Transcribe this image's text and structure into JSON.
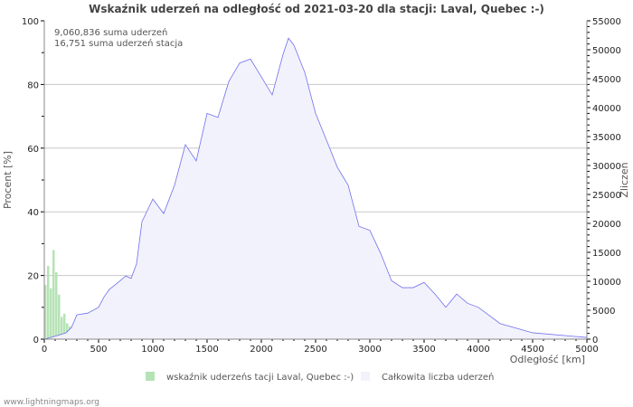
{
  "chart_data": {
    "type": "bar+area",
    "title": "Wskaźnik uderzeń na odległość od 2021-03-20 dla stacji: Laval, Quebec :-)",
    "annotations": [
      "9,060,836 suma uderzeń",
      "16,751 suma uderzeń stacja"
    ],
    "xlabel": "Odległość   [km]",
    "ylabel_left": "Procent   [%]",
    "ylabel_right": "Zliczeń",
    "xlim": [
      0,
      5000
    ],
    "ylim_left": [
      0,
      100
    ],
    "ylim_right": [
      0,
      55000
    ],
    "x_ticks": [
      "0",
      "500",
      "1000",
      "1500",
      "2000",
      "2500",
      "3000",
      "3500",
      "4000",
      "4500",
      "5000"
    ],
    "y_left_ticks": [
      "0",
      "20",
      "40",
      "60",
      "80",
      "100"
    ],
    "y_right_ticks": [
      "0",
      "5000",
      "10000",
      "15000",
      "20000",
      "25000",
      "30000",
      "35000",
      "40000",
      "45000",
      "50000",
      "55000"
    ],
    "grid": true,
    "legend_placement": "bottom",
    "series": [
      {
        "name": "wskaźnik uderzeńs tacji Laval, Quebec :-)",
        "axis": "left",
        "color": "#b5e3b5",
        "type": "bar",
        "x": [
          0,
          25,
          50,
          75,
          100,
          125,
          150,
          175,
          200,
          225,
          250,
          275,
          300,
          350,
          400,
          450,
          500,
          600,
          700,
          800,
          900,
          1000
        ],
        "values": [
          17,
          23,
          16,
          28,
          21,
          14,
          7,
          8,
          5,
          4,
          3,
          2,
          1.5,
          1,
          0.7,
          0.5,
          0.4,
          0.3,
          0.3,
          0.3,
          0.2,
          0.2
        ]
      },
      {
        "name": "Całkowita liczba uderzeń",
        "axis": "right",
        "color": "#7070ee",
        "fill": "#f2f2fc",
        "type": "area",
        "x": [
          0,
          100,
          200,
          250,
          300,
          400,
          500,
          550,
          600,
          700,
          750,
          800,
          850,
          900,
          1000,
          1100,
          1200,
          1300,
          1400,
          1500,
          1600,
          1700,
          1800,
          1900,
          2000,
          2100,
          2200,
          2250,
          2300,
          2400,
          2500,
          2600,
          2700,
          2800,
          2900,
          3000,
          3100,
          3200,
          3300,
          3400,
          3500,
          3600,
          3700,
          3800,
          3900,
          4000,
          4200,
          4500,
          5000
        ],
        "values": [
          0,
          500,
          1100,
          2000,
          4200,
          4500,
          5500,
          7300,
          8600,
          10100,
          10900,
          10500,
          13000,
          20300,
          24200,
          21700,
          26600,
          33600,
          30800,
          39000,
          38300,
          44500,
          47700,
          48400,
          45300,
          42200,
          49200,
          52000,
          50800,
          46100,
          39000,
          34400,
          29700,
          26600,
          19500,
          18800,
          14800,
          10100,
          8900,
          8900,
          9800,
          7800,
          5500,
          7800,
          6200,
          5500,
          2700,
          1100,
          300
        ]
      }
    ]
  },
  "footer": "www.lightningmaps.org"
}
